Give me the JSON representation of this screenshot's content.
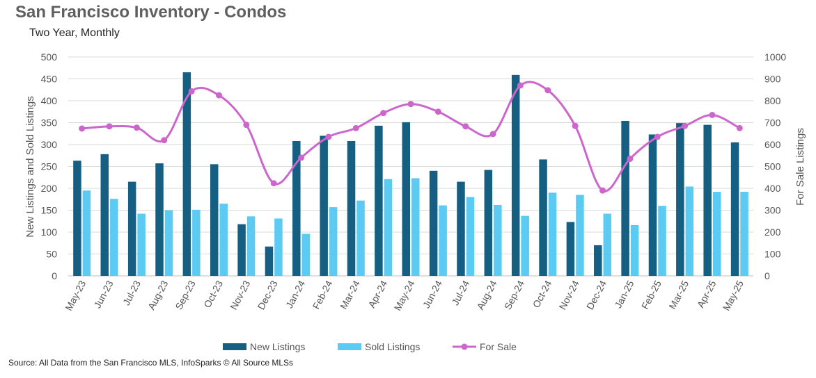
{
  "title": "San Francisco Inventory - Condos",
  "subtitle": "Two Year, Monthly",
  "source": "Source: All Data from the San Francisco MLS, InfoSparks © All Source MLSs",
  "chart_data": {
    "type": "bar",
    "categories": [
      "May-23",
      "Jun-23",
      "Jul-23",
      "Aug-23",
      "Sep-23",
      "Oct-23",
      "Nov-23",
      "Dec-23",
      "Jan-24",
      "Feb-24",
      "Mar-24",
      "Apr-24",
      "May-24",
      "Jun-24",
      "Jul-24",
      "Aug-24",
      "Sep-24",
      "Oct-24",
      "Nov-24",
      "Dec-24",
      "Jan-25",
      "Feb-25",
      "Mar-25",
      "Apr-25",
      "May-25"
    ],
    "series": [
      {
        "name": "New Listings",
        "type": "bar",
        "axis": "left",
        "color": "#145f82",
        "values": [
          263,
          278,
          215,
          257,
          465,
          255,
          118,
          67,
          308,
          320,
          308,
          343,
          351,
          240,
          215,
          242,
          459,
          266,
          123,
          70,
          354,
          323,
          349,
          345,
          305
        ]
      },
      {
        "name": "Sold Listings",
        "type": "bar",
        "axis": "left",
        "color": "#5ccbf4",
        "values": [
          195,
          176,
          142,
          150,
          151,
          165,
          136,
          131,
          96,
          157,
          172,
          221,
          223,
          161,
          180,
          162,
          137,
          190,
          185,
          142,
          116,
          160,
          204,
          192,
          192
        ]
      },
      {
        "name": "For Sale",
        "type": "line",
        "axis": "right",
        "color": "#cc66cc",
        "values": [
          673,
          683,
          677,
          620,
          843,
          825,
          690,
          423,
          540,
          635,
          675,
          744,
          785,
          750,
          683,
          648,
          870,
          848,
          685,
          390,
          535,
          635,
          685,
          735,
          675
        ]
      }
    ],
    "ylabel": "New Listings and Sold Listings",
    "y2label": "For Sale Listings",
    "ylim": [
      0,
      500
    ],
    "y2lim": [
      0,
      1000
    ],
    "yticks": [
      "0",
      "50",
      "100",
      "150",
      "200",
      "250",
      "300",
      "350",
      "400",
      "450",
      "500"
    ],
    "y2ticks": [
      "0",
      "100",
      "200",
      "300",
      "400",
      "500",
      "600",
      "700",
      "800",
      "900",
      "1000"
    ],
    "grid": true,
    "legend_position": "bottom"
  }
}
